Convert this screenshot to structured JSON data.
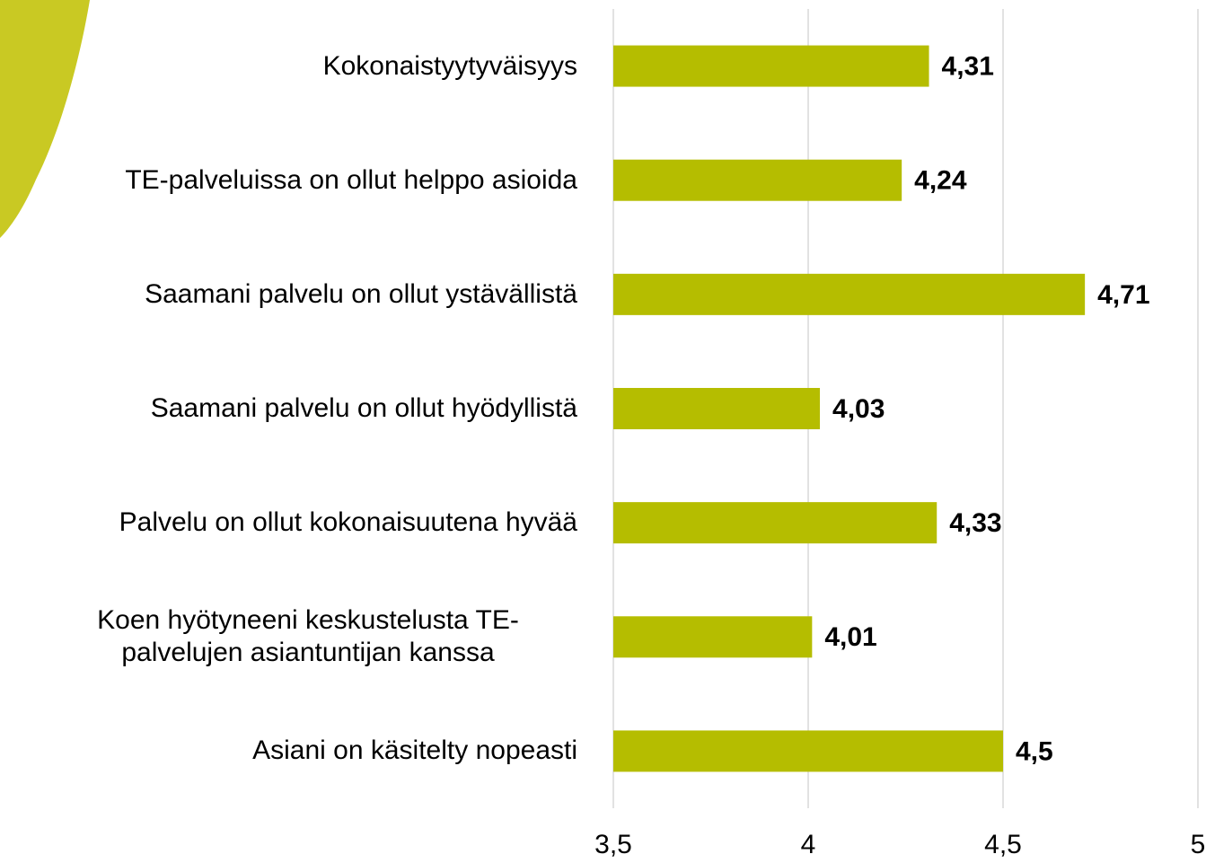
{
  "chart_data": {
    "type": "barh",
    "categories": [
      "Kokonaistyytyväisyys",
      "TE-palveluissa on ollut helppo asioida",
      "Saamani palvelu on ollut ystävällistä",
      "Saamani palvelu on ollut hyödyllistä",
      "Palvelu on ollut kokonaisuutena hyvää",
      "Koen hyötyneeni keskustelusta TE-palvelujen asiantuntijan kanssa",
      "Asiani on käsitelty nopeasti"
    ],
    "values": [
      4.31,
      4.24,
      4.71,
      4.03,
      4.33,
      4.01,
      4.5
    ],
    "value_labels": [
      "4,31",
      "4,24",
      "4,71",
      "4,03",
      "4,33",
      "4,01",
      "4,5"
    ],
    "color": "#b5bd00",
    "xlim": [
      3.5,
      5
    ],
    "xticks": [
      {
        "value": 3.5,
        "label": "3,5"
      },
      4,
      {
        "value": 4.5,
        "label": "4,5"
      },
      5
    ],
    "grid": true
  }
}
